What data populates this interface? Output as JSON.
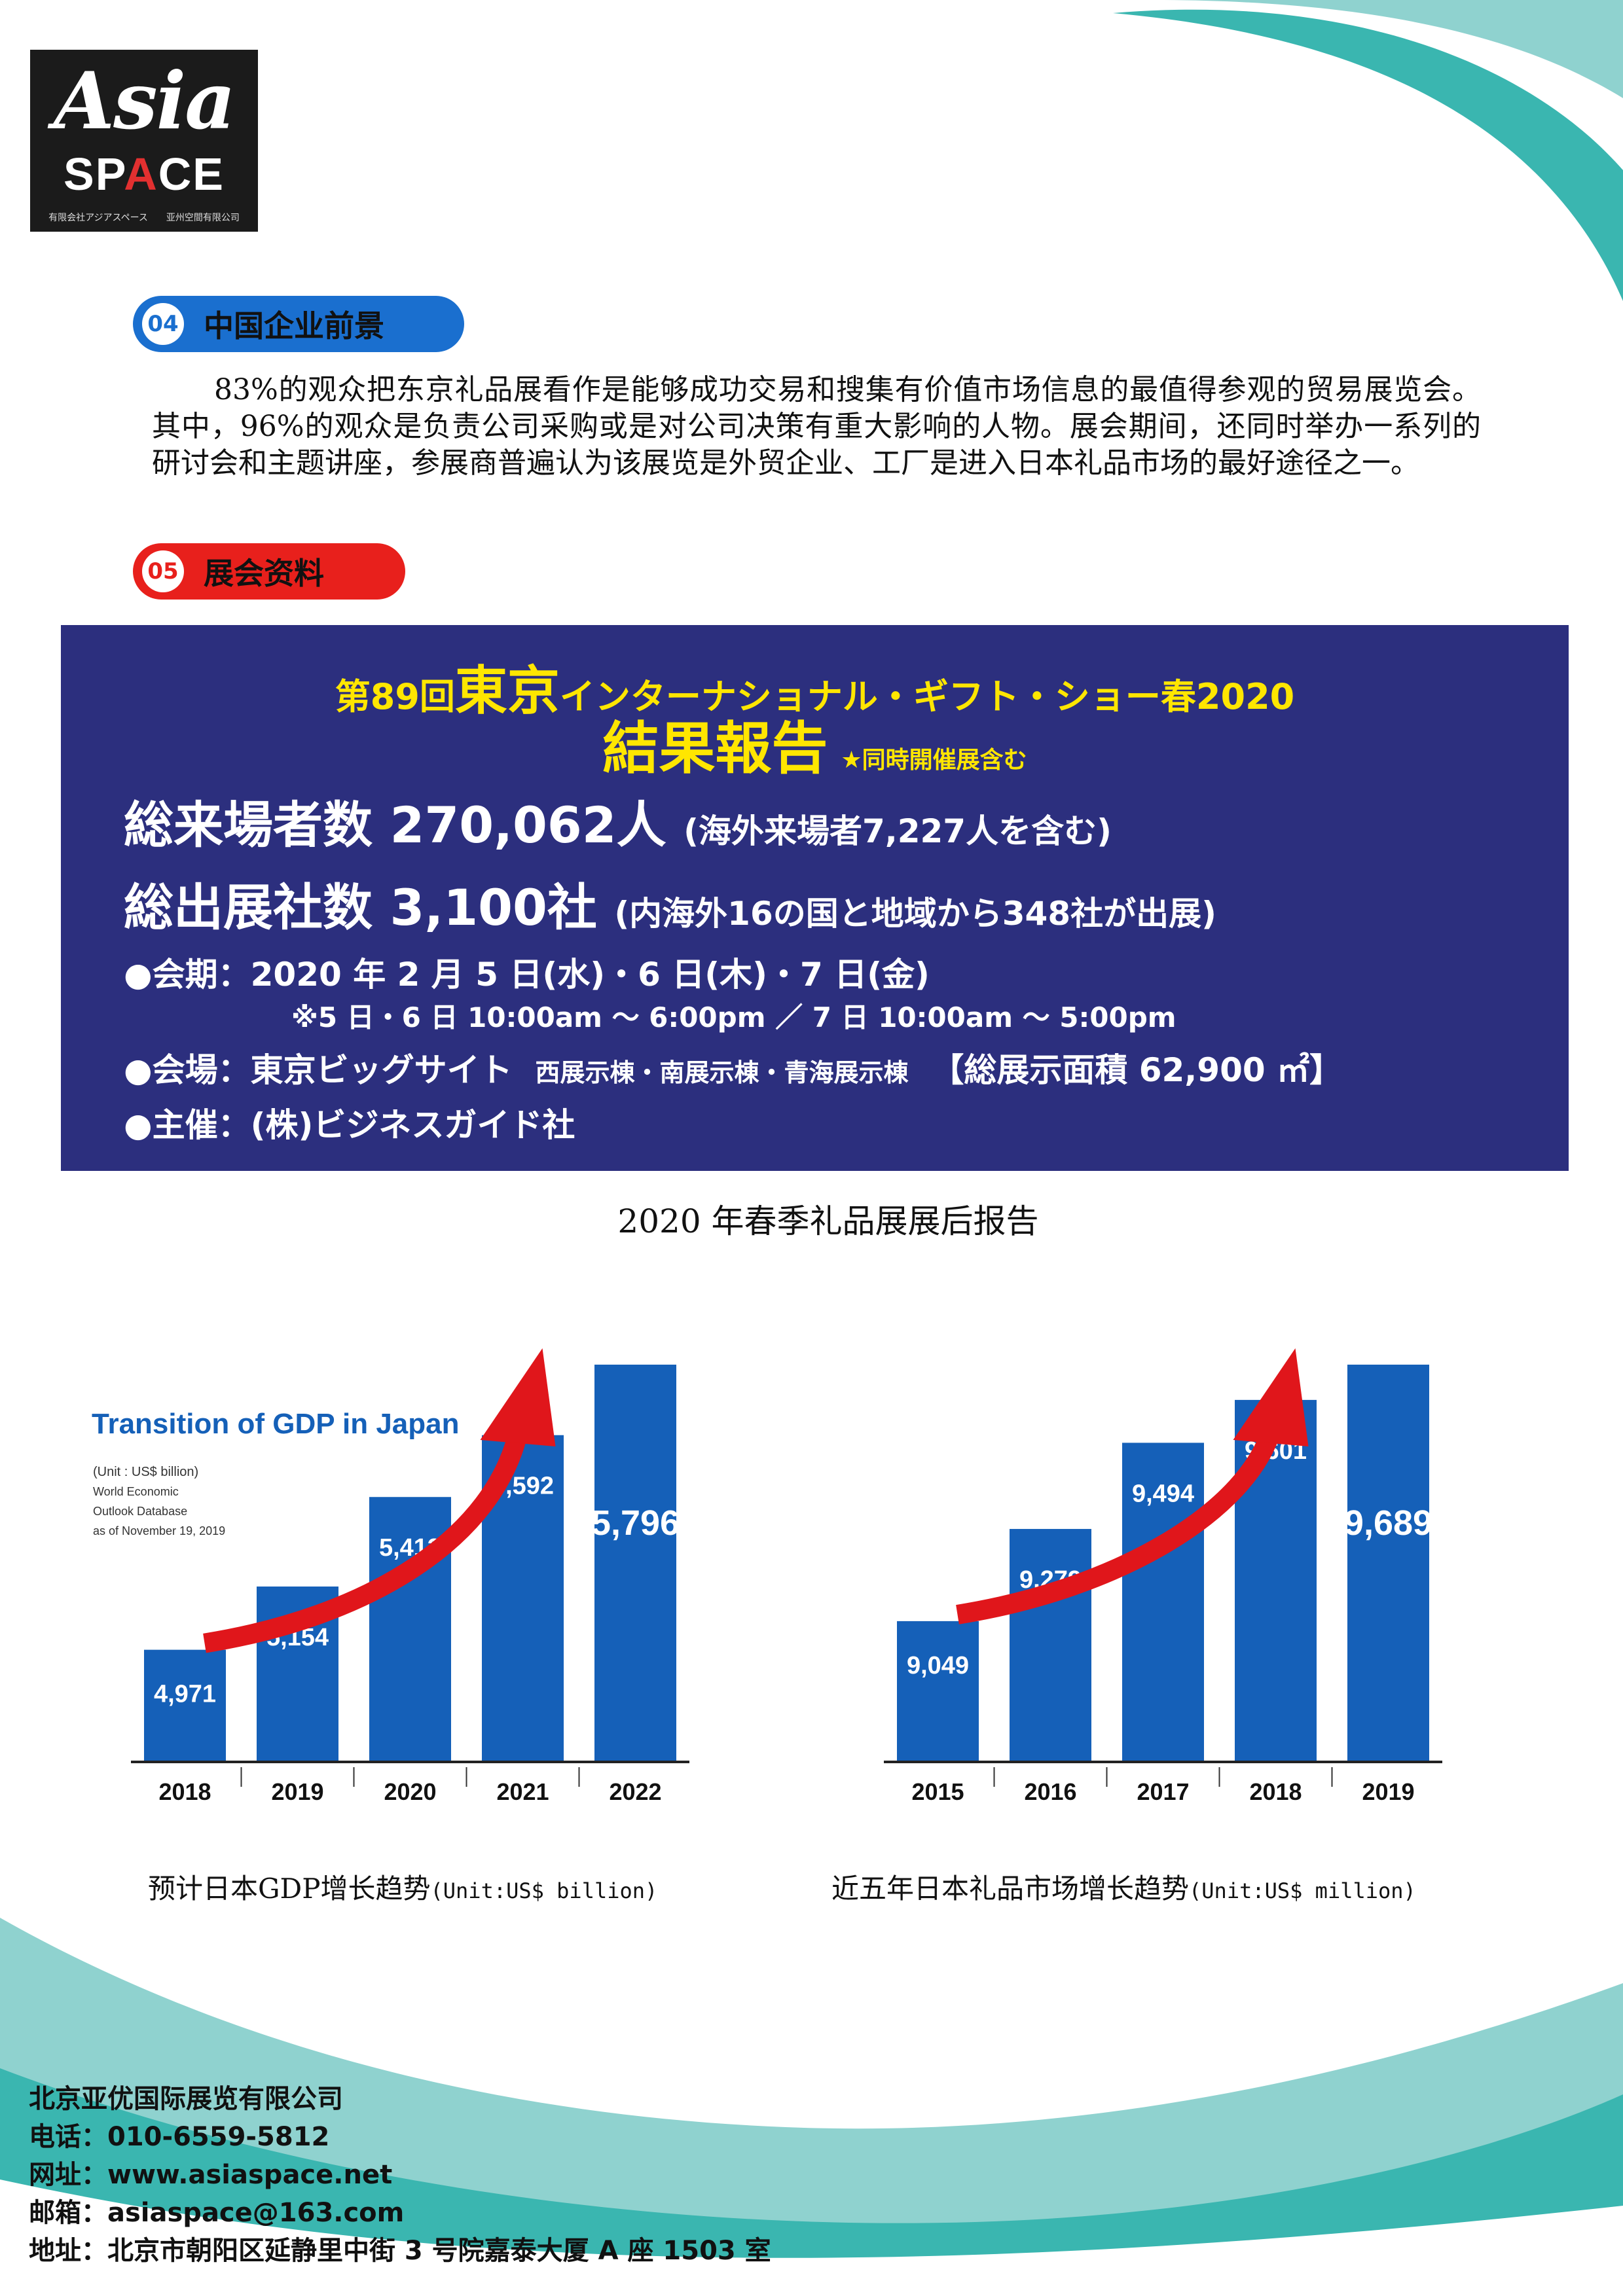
{
  "logo": {
    "word1": "Asia",
    "word2_pre": "SP",
    "word2_a": "A",
    "word2_post": "CE",
    "subtitle": "有限会社アジアスペース　　亚州空間有限公司"
  },
  "section04": {
    "number": "04",
    "title": "中国企业前景"
  },
  "paragraph": "83%的观众把东京礼品展看作是能够成功交易和搜集有价值市场信息的最值得参观的贸易展览会。其中，96%的观众是负责公司采购或是对公司决策有重大影响的人物。展会期间，还同时举办一系列的研讨会和主题讲座，参展商普遍认为该展览是外贸企业、工厂是进入日本礼品市场的最好途径之一。",
  "section05": {
    "number": "05",
    "title": "展会资料"
  },
  "banner": {
    "title_pre": "第89回",
    "title_big": "東京",
    "title_post": "インターナショナル・ギフト・ショー春2020",
    "subtitle": "結果報告",
    "subtitle_note": "★同時開催展含む",
    "l1_main": "総来場者数 270,062人",
    "l1_paren": "(海外来場者7,227人を含む)",
    "l2_main": "総出展社数 3,100社",
    "l2_paren": "(内海外16の国と地域から348社が出展)",
    "l3": "●会期：2020 年 2 月 5 日(水)・6 日(木)・7 日(金)",
    "l4": "※5 日・6 日 10:00am ～ 6:00pm ／ 7 日 10:00am ～ 5:00pm",
    "l5_a": "●会場：東京ビッグサイト",
    "l5_b": "西展示棟・南展示棟・青海展示棟",
    "l5_c": "【総展示面積 62,900 ㎡】",
    "l6": "●主催：(株)ビジネスガイド社"
  },
  "caption_main": "2020 年春季礼品展展后报告",
  "chart_data": [
    {
      "type": "bar",
      "title": "Transition of GDP in Japan",
      "notes": [
        "(Unit : US$ billion)",
        "World Economic",
        "Outlook Database",
        "as of November 19, 2019"
      ],
      "categories": [
        "2018",
        "2019",
        "2020",
        "2021",
        "2022"
      ],
      "values": [
        4971,
        5154,
        5413,
        5592,
        5796
      ],
      "labels": [
        "4,971",
        "5,154",
        "5,413",
        "5,592",
        "5,796"
      ],
      "bar_color": "#1560b8"
    },
    {
      "type": "bar",
      "title": "",
      "categories": [
        "2015",
        "2016",
        "2017",
        "2018",
        "2019"
      ],
      "values": [
        9049,
        9279,
        9494,
        9601,
        9689
      ],
      "labels": [
        "9,049",
        "9,279",
        "9,494",
        "9,601",
        "9,689"
      ],
      "bar_color": "#1560b8"
    }
  ],
  "captions": {
    "gdp_main": "预计日本GDP增长趋势",
    "gdp_unit": "(Unit:US$ billion)",
    "gift_main": "近五年日本礼品市场增长趋势",
    "gift_unit": "(Unit:US$ million)"
  },
  "footer": {
    "company": "北京亚优国际展览有限公司",
    "phone": "电话：010-6559-5812",
    "web": "网址：www.asiaspace.net",
    "email": "邮箱：asiaspace@163.com",
    "address": "地址：北京市朝阳区延静里中街 3 号院嘉泰大厦 A 座 1503 室"
  },
  "colors": {
    "teal": "#3ab6b0",
    "banner": "#2c2f7e",
    "yellow": "#ffe600",
    "blue": "#1a6fcf",
    "red": "#e8201c"
  }
}
